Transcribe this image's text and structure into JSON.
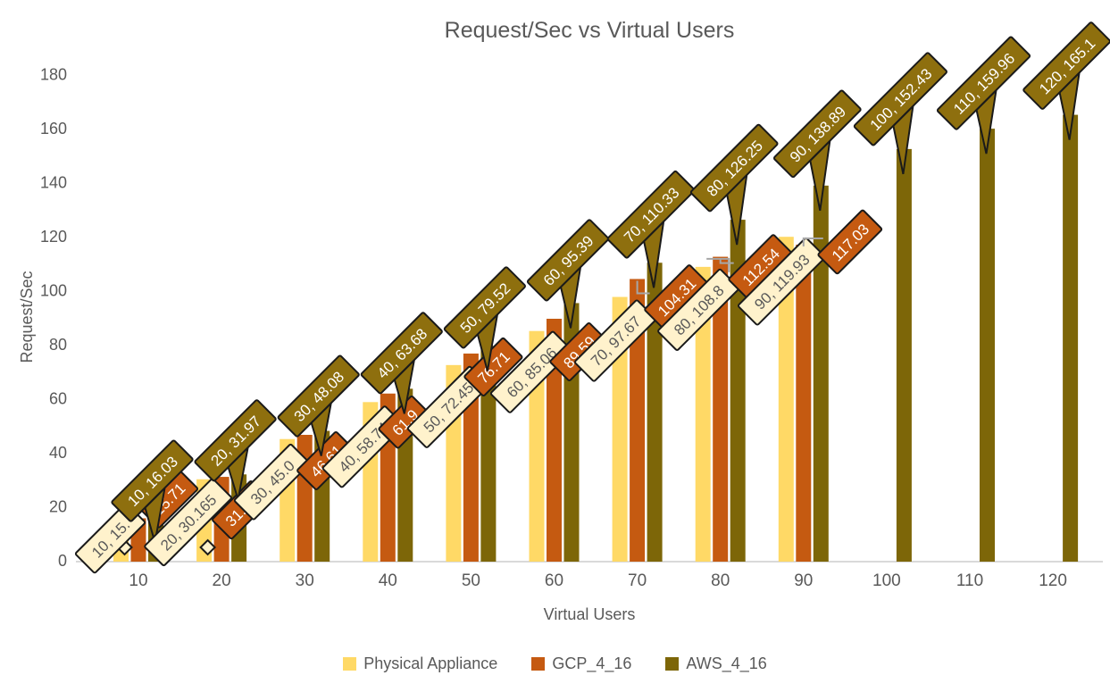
{
  "title": "Request/Sec vs Virtual Users",
  "x_axis": {
    "title": "Virtual Users"
  },
  "y_axis": {
    "title": "Request/Sec",
    "ticks": [
      0,
      20,
      40,
      60,
      80,
      100,
      120,
      140,
      160,
      180
    ]
  },
  "legend": {
    "items": [
      {
        "label": "Physical Appliance",
        "color": "#FFD966"
      },
      {
        "label": "GCP_4_16",
        "color": "#C55A11"
      },
      {
        "label": "AWS_4_16",
        "color": "#7D6608"
      }
    ]
  },
  "colors": {
    "physical_bar": "#FFD966",
    "gcp_bar": "#C55A11",
    "aws_bar": "#7D6608",
    "physical_callout_fill": "#FFF2CC",
    "physical_callout_text": "#595959",
    "gcp_callout_fill": "#C55A11",
    "aws_callout_fill": "#8E6F0E",
    "callout_border": "#1A1A1A",
    "callout_light_text": "#FFFFFF",
    "axis_line": "#D9D9D9",
    "leader_line": "#A6A6A6",
    "text_gray": "#595959"
  },
  "chart_data": {
    "type": "bar",
    "title": "Request/Sec vs Virtual Users",
    "xlabel": "Virtual Users",
    "ylabel": "Request/Sec",
    "ylim": [
      0,
      180
    ],
    "grid": false,
    "legend_position": "bottom",
    "categories": [
      10,
      20,
      30,
      40,
      50,
      60,
      70,
      80,
      90,
      100,
      110,
      120
    ],
    "series": [
      {
        "name": "Physical Appliance",
        "color": "#FFD966",
        "values": [
          15.3,
          30.165,
          45.05,
          58.74,
          72.45,
          85.06,
          97.67,
          108.8,
          119.93,
          null,
          null,
          null
        ],
        "labels": [
          "10, 15.",
          "20, 30.165",
          "30, 45.0",
          "40, 58.74",
          "50, 72.45",
          "60, 85.06",
          "70, 97.67",
          "80, 108.8",
          "90, 119.93",
          null,
          null,
          null
        ]
      },
      {
        "name": "GCP_4_16",
        "color": "#C55A11",
        "values": [
          15.71,
          31.05,
          46.61,
          61.9,
          76.71,
          89.59,
          104.31,
          112.54,
          117.03,
          null,
          null,
          null
        ],
        "labels": [
          "15.71",
          "31.05",
          "46.61",
          "61.9",
          "76.71",
          "89.59",
          "104.31",
          "112.54",
          "117.03",
          null,
          null,
          null
        ]
      },
      {
        "name": "AWS_4_16",
        "color": "#7D6608",
        "values": [
          16.03,
          31.97,
          48.08,
          63.68,
          79.52,
          95.39,
          110.33,
          126.25,
          138.89,
          152.43,
          159.96,
          165.1
        ],
        "labels": [
          "10, 16.03",
          "20, 31.97",
          "30, 48.08",
          "40, 63.68",
          "50, 79.52",
          "60, 95.39",
          "70, 110.33",
          "80, 126.25",
          "90, 138.89",
          "100, 152.43",
          "110, 159.96",
          "120, 165.1"
        ]
      }
    ]
  }
}
